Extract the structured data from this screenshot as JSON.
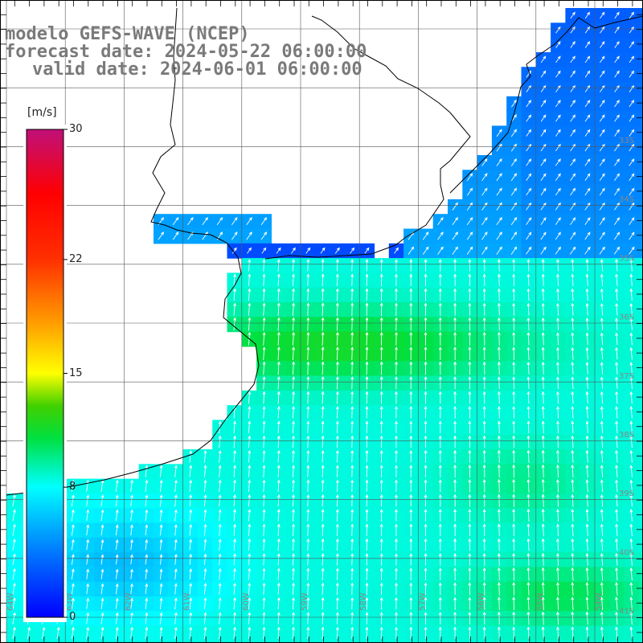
{
  "title": {
    "line1": "modelo GEFS-WAVE (NCEP)",
    "line2": "forecast date: 2024-05-22 06:00:00",
    "line3": "valid date: 2024-06-01 06:00:00"
  },
  "colorbar": {
    "unit": "[m/s]",
    "min": 0,
    "max": 30,
    "ticks": [
      {
        "value": 30,
        "label": "30"
      },
      {
        "value": 22,
        "label": "22"
      },
      {
        "value": 15,
        "label": "15"
      },
      {
        "value": 8,
        "label": "8"
      },
      {
        "value": 0,
        "label": "0"
      }
    ],
    "stops": [
      {
        "value": 0,
        "color": "#0000ff"
      },
      {
        "value": 4,
        "color": "#0078ff"
      },
      {
        "value": 8,
        "color": "#00ffff"
      },
      {
        "value": 11,
        "color": "#00e040"
      },
      {
        "value": 13,
        "color": "#40d000"
      },
      {
        "value": 15,
        "color": "#ffff00"
      },
      {
        "value": 18,
        "color": "#ffa000"
      },
      {
        "value": 22,
        "color": "#ff3000"
      },
      {
        "value": 26,
        "color": "#ff0000"
      },
      {
        "value": 30,
        "color": "#c0107a"
      }
    ]
  },
  "lat_labels": [
    "33S",
    "34S",
    "35S",
    "36S",
    "37S",
    "38S",
    "39S",
    "40S",
    "41S"
  ],
  "lon_labels": [
    "64W",
    "63W",
    "62W",
    "61W",
    "60W",
    "59W",
    "58W",
    "57W",
    "56W",
    "55W",
    "54W"
  ],
  "colors": {
    "grid": "#555555",
    "coast": "#000000",
    "arrow": "#ffffff",
    "title": "#7a7a7a"
  }
}
